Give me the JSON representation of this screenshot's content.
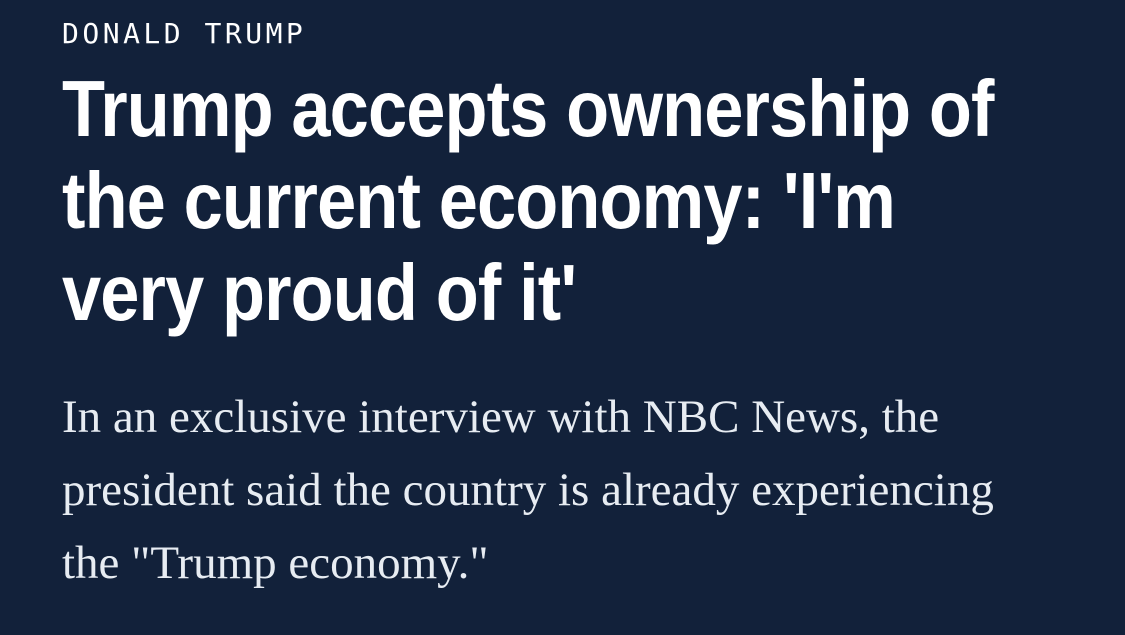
{
  "page": {
    "background_color": "#12213a",
    "headline_color": "#ffffff",
    "dek_color": "#e7ecf2"
  },
  "article": {
    "kicker": "DONALD TRUMP",
    "headline": {
      "full": "Trump accepts ownership of the current economy: 'I'm very proud of it'",
      "lines": [
        "Trump accepts ownership of",
        "the current economy: 'I'm",
        "very proud of it'"
      ]
    },
    "dek": {
      "full": "In an exclusive interview with NBC News, the president said the country is already experiencing the \"Trump economy.\"",
      "lines": [
        "In an exclusive interview with NBC News, the",
        "president said the country is already experiencing",
        "the \"Trump economy.\""
      ]
    }
  }
}
